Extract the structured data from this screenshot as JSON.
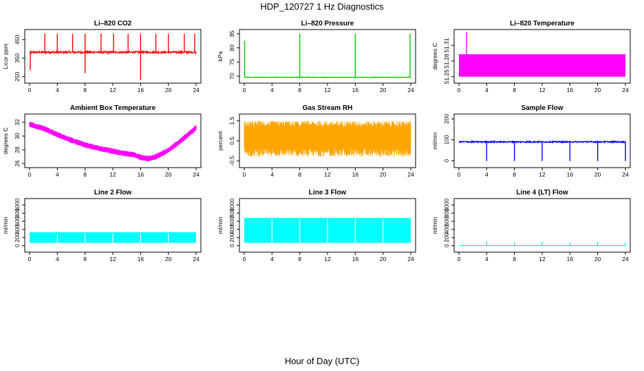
{
  "page": {
    "title": "HDP_120727  1 Hz Diagnostics",
    "xlabel": "Hour of Day (UTC)"
  },
  "chart_data": [
    {
      "type": "line",
      "title": "Li–820 CO2",
      "ylabel": "Licor ppm",
      "color": "#ff0000",
      "xlim": [
        0,
        24
      ],
      "xticks": [
        0,
        4,
        8,
        12,
        16,
        20,
        24
      ],
      "ylim": [
        230,
        490
      ],
      "yticks": [
        250,
        350,
        450
      ],
      "baseline": 382,
      "noise": 5,
      "spikes_up": [
        {
          "x": 2.2,
          "y": 482
        },
        {
          "x": 4.0,
          "y": 482
        },
        {
          "x": 6.2,
          "y": 482
        },
        {
          "x": 8.0,
          "y": 482
        },
        {
          "x": 10.3,
          "y": 482
        },
        {
          "x": 12.1,
          "y": 482
        },
        {
          "x": 14.2,
          "y": 482
        },
        {
          "x": 16.0,
          "y": 482
        },
        {
          "x": 18.2,
          "y": 482
        },
        {
          "x": 20.0,
          "y": 482
        },
        {
          "x": 22.3,
          "y": 482
        },
        {
          "x": 23.8,
          "y": 482
        }
      ],
      "spikes_down": [
        {
          "x": 0.1,
          "y": 285
        },
        {
          "x": 8.0,
          "y": 270
        },
        {
          "x": 16.0,
          "y": 232
        }
      ]
    },
    {
      "type": "line",
      "title": "Li–820 Pressure",
      "ylabel": "kPa",
      "color": "#00cc00",
      "xlim": [
        0,
        24
      ],
      "xticks": [
        0,
        4,
        8,
        12,
        16,
        20,
        24
      ],
      "ylim": [
        68.5,
        85.5
      ],
      "yticks": [
        70,
        75,
        80,
        85
      ],
      "baseline": 69.6,
      "noise": 0.08,
      "spikes_up": [
        {
          "x": 0.05,
          "y": 82.5
        },
        {
          "x": 8.0,
          "y": 85
        },
        {
          "x": 16.0,
          "y": 85
        },
        {
          "x": 23.9,
          "y": 85
        }
      ],
      "spikes_down": []
    },
    {
      "type": "area",
      "title": "Li–820 Temperature",
      "ylabel": "degrees C",
      "color": "#ff00ff",
      "xlim": [
        0,
        24
      ],
      "xticks": [
        0,
        4,
        8,
        12,
        16,
        20,
        24
      ],
      "ylim": [
        51.243,
        51.335
      ],
      "yticks": [
        51.25,
        51.28,
        51.31
      ],
      "band_low": 51.25,
      "band_high": 51.293,
      "spikes_up": [
        {
          "x": 1.1,
          "y": 51.335
        }
      ]
    },
    {
      "type": "line",
      "title": "Ambient Box Temperature",
      "ylabel": "degrees C",
      "color": "#ff00ff",
      "xlim": [
        0,
        24
      ],
      "xticks": [
        0,
        4,
        8,
        12,
        16,
        20,
        24
      ],
      "ylim": [
        25.8,
        32.8
      ],
      "yticks": [
        26,
        28,
        30,
        32
      ],
      "trend": [
        [
          0,
          31.7
        ],
        [
          2,
          31.1
        ],
        [
          4,
          30.2
        ],
        [
          6,
          29.4
        ],
        [
          8,
          28.7
        ],
        [
          10,
          28.2
        ],
        [
          12,
          27.8
        ],
        [
          14,
          27.4
        ],
        [
          15,
          27.3
        ],
        [
          16,
          26.9
        ],
        [
          17,
          26.7
        ],
        [
          18,
          26.9
        ],
        [
          20,
          27.9
        ],
        [
          22,
          29.5
        ],
        [
          24,
          31.2
        ]
      ],
      "noise": 0.35
    },
    {
      "type": "area",
      "title": "Gas Stream RH",
      "ylabel": "percent",
      "color": "#ffa500",
      "xlim": [
        0,
        24
      ],
      "xticks": [
        0,
        4,
        8,
        12,
        16,
        20,
        24
      ],
      "ylim": [
        -0.7,
        1.7
      ],
      "yticks": [
        -0.5,
        0.5,
        1.5
      ],
      "band_low": -0.05,
      "band_high": 1.3,
      "noise": 0.3
    },
    {
      "type": "line",
      "title": "Sample Flow",
      "ylabel": "ml/min",
      "color": "#0000ff",
      "xlim": [
        0,
        24
      ],
      "xticks": [
        0,
        4,
        8,
        12,
        16,
        20,
        24
      ],
      "ylim": [
        -20,
        210
      ],
      "yticks": [
        0,
        100,
        200
      ],
      "baseline": 90,
      "noise": 3,
      "spikes_up": [],
      "spikes_down": [
        {
          "x": 4.0,
          "y": -2
        },
        {
          "x": 8.0,
          "y": -2
        },
        {
          "x": 12.0,
          "y": -2
        },
        {
          "x": 16.0,
          "y": -2
        },
        {
          "x": 20.0,
          "y": -2
        },
        {
          "x": 24.0,
          "y": -2
        }
      ]
    },
    {
      "type": "area",
      "title": "Line 2 Flow",
      "ylabel": "ml/min",
      "color": "#00ffff",
      "xlim": [
        0,
        24
      ],
      "xticks": [
        0,
        4,
        8,
        12,
        16,
        20,
        24
      ],
      "ylim": [
        -90,
        1090
      ],
      "yticks": [
        0,
        200,
        400,
        600,
        800,
        1000
      ],
      "band_low": 70,
      "band_high": 330,
      "gaps": [
        4,
        8,
        12,
        16,
        20
      ]
    },
    {
      "type": "area",
      "title": "Line 3 Flow",
      "ylabel": "ml/min",
      "color": "#00ffff",
      "xlim": [
        0,
        24
      ],
      "xticks": [
        0,
        4,
        8,
        12,
        16,
        20,
        24
      ],
      "ylim": [
        -90,
        1090
      ],
      "yticks": [
        0,
        200,
        400,
        600,
        800,
        1000
      ],
      "band_low": 70,
      "band_high": 680,
      "gaps": [
        4,
        8,
        12,
        16,
        20
      ]
    },
    {
      "type": "line",
      "title": "Line 4 (LT) Flow",
      "ylabel": "ml/min",
      "color": "#00ffff",
      "xlim": [
        0,
        24
      ],
      "xticks": [
        0,
        4,
        8,
        12,
        16,
        20,
        24
      ],
      "ylim": [
        -90,
        1090
      ],
      "yticks": [
        0,
        200,
        400,
        600,
        800,
        1000
      ],
      "baseline": 2,
      "noise": 0,
      "spikes_up": [
        {
          "x": 4.0,
          "y": 100
        },
        {
          "x": 8.0,
          "y": 80
        },
        {
          "x": 12.0,
          "y": 100
        },
        {
          "x": 16.0,
          "y": 80
        },
        {
          "x": 20.0,
          "y": 100
        },
        {
          "x": 24.0,
          "y": 70
        }
      ],
      "spikes_down": []
    }
  ]
}
